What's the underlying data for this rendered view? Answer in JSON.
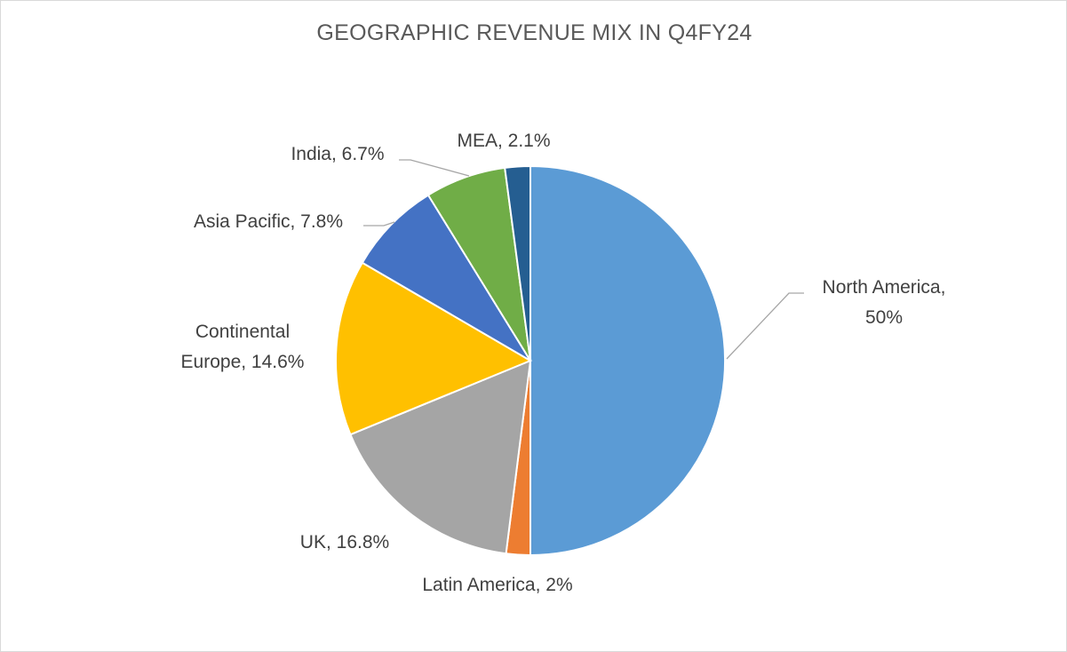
{
  "chart_data": {
    "type": "pie",
    "title": "GEOGRAPHIC REVENUE MIX IN Q4FY24",
    "categories": [
      "North America",
      "Latin America",
      "UK",
      "Continental Europe",
      "Asia Pacific",
      "India",
      "MEA"
    ],
    "values": [
      50,
      2,
      16.8,
      14.6,
      7.8,
      6.7,
      2.1
    ],
    "labels": [
      [
        "North America,",
        "50%"
      ],
      [
        "Latin America, 2%"
      ],
      [
        "UK, 16.8%"
      ],
      [
        "Continental",
        "Europe, 14.6%"
      ],
      [
        "Asia Pacific, 7.8%"
      ],
      [
        "India, 6.7%"
      ],
      [
        "MEA, 2.1%"
      ]
    ],
    "colors": [
      "#5b9bd5",
      "#ed7d31",
      "#a5a5a5",
      "#ffc000",
      "#4472c4",
      "#70ad47",
      "#255e91"
    ],
    "start_angle_deg": 0,
    "direction": "clockwise",
    "legend": "none",
    "data_labels": "outside with leader lines"
  }
}
